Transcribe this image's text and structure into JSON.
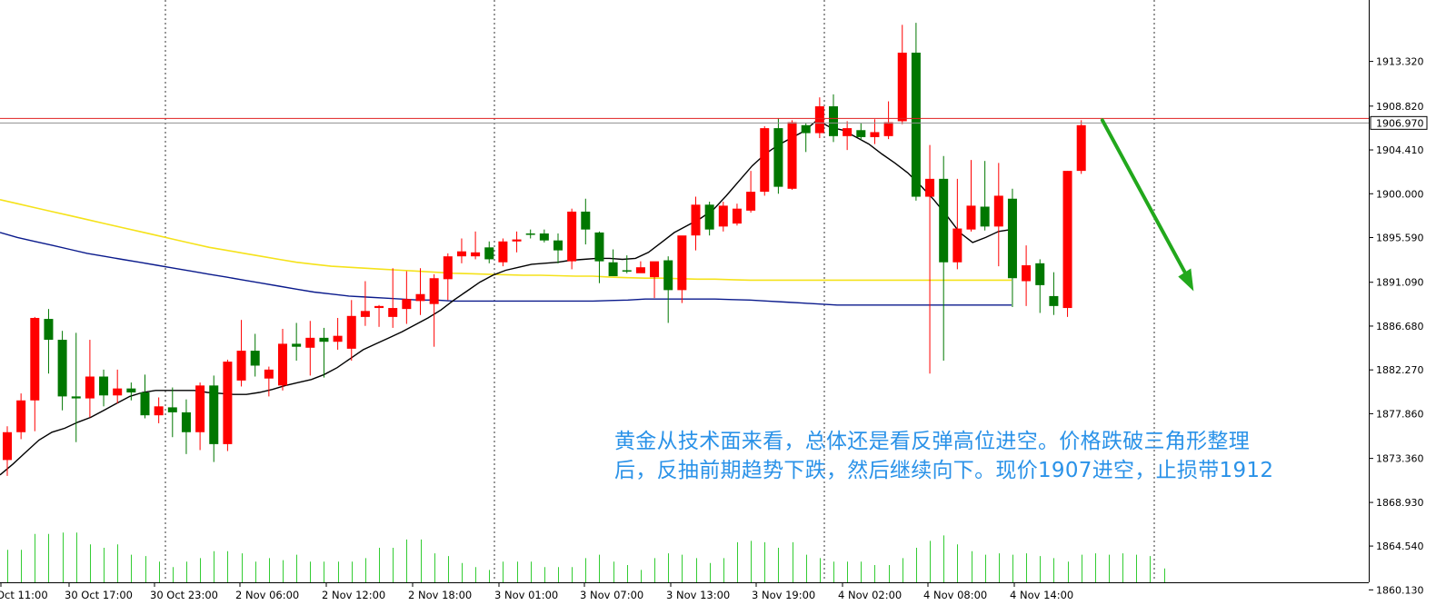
{
  "chart_data": {
    "type": "candlestick",
    "symbol_hint": "XAUUSD",
    "ylim": [
      1857.6,
      1919.5
    ],
    "y_ticks": [
      "1913.320",
      "1908.820",
      "1904.410",
      "1900.000",
      "1895.590",
      "1891.090",
      "1886.680",
      "1882.270",
      "1877.860",
      "1873.360",
      "1868.930",
      "1864.540",
      "1860.130"
    ],
    "x_ticks": [
      "Oct 11:00",
      "30 Oct 17:00",
      "30 Oct 23:00",
      "2 Nov 06:00",
      "2 Nov 12:00",
      "2 Nov 18:00",
      "3 Nov 01:00",
      "3 Nov 07:00",
      "3 Nov 13:00",
      "3 Nov 19:00",
      "4 Nov 02:00",
      "4 Nov 08:00",
      "4 Nov 14:00"
    ],
    "current_price": "1906.970",
    "reference_price": 1907.4,
    "candles": [
      {
        "o": 1873.2,
        "h": 1876.6,
        "l": 1871.6,
        "c": 1876.0
      },
      {
        "o": 1876.0,
        "h": 1879.9,
        "l": 1875.3,
        "c": 1879.2
      },
      {
        "o": 1879.2,
        "h": 1887.6,
        "l": 1876.1,
        "c": 1887.5
      },
      {
        "o": 1887.4,
        "h": 1888.4,
        "l": 1881.9,
        "c": 1885.3
      },
      {
        "o": 1885.3,
        "h": 1886.2,
        "l": 1878.2,
        "c": 1879.6
      },
      {
        "o": 1879.6,
        "h": 1886.0,
        "l": 1875.0,
        "c": 1879.4
      },
      {
        "o": 1879.4,
        "h": 1885.3,
        "l": 1877.5,
        "c": 1881.6
      },
      {
        "o": 1881.6,
        "h": 1882.3,
        "l": 1878.6,
        "c": 1879.7
      },
      {
        "o": 1879.7,
        "h": 1882.3,
        "l": 1878.9,
        "c": 1880.4
      },
      {
        "o": 1880.4,
        "h": 1881.0,
        "l": 1879.2,
        "c": 1880.0
      },
      {
        "o": 1880.0,
        "h": 1881.8,
        "l": 1877.4,
        "c": 1877.7
      },
      {
        "o": 1877.7,
        "h": 1879.5,
        "l": 1876.9,
        "c": 1878.6
      },
      {
        "o": 1878.5,
        "h": 1880.5,
        "l": 1875.5,
        "c": 1878.0
      },
      {
        "o": 1878.0,
        "h": 1879.3,
        "l": 1873.8,
        "c": 1876.0
      },
      {
        "o": 1876.0,
        "h": 1881.0,
        "l": 1874.2,
        "c": 1880.7
      },
      {
        "o": 1880.7,
        "h": 1881.7,
        "l": 1873.0,
        "c": 1874.8
      },
      {
        "o": 1874.8,
        "h": 1883.3,
        "l": 1874.1,
        "c": 1883.1
      },
      {
        "o": 1881.2,
        "h": 1887.3,
        "l": 1880.6,
        "c": 1884.2
      },
      {
        "o": 1884.2,
        "h": 1885.9,
        "l": 1881.6,
        "c": 1882.7
      },
      {
        "o": 1881.4,
        "h": 1882.6,
        "l": 1879.6,
        "c": 1882.3
      },
      {
        "o": 1880.7,
        "h": 1886.4,
        "l": 1880.2,
        "c": 1884.9
      },
      {
        "o": 1884.9,
        "h": 1887.0,
        "l": 1883.2,
        "c": 1884.6
      },
      {
        "o": 1884.5,
        "h": 1887.2,
        "l": 1881.7,
        "c": 1885.5
      },
      {
        "o": 1885.5,
        "h": 1886.5,
        "l": 1881.5,
        "c": 1885.1
      },
      {
        "o": 1885.1,
        "h": 1887.5,
        "l": 1884.3,
        "c": 1885.7
      },
      {
        "o": 1884.4,
        "h": 1889.3,
        "l": 1883.2,
        "c": 1887.7
      },
      {
        "o": 1887.6,
        "h": 1891.2,
        "l": 1886.7,
        "c": 1888.2
      },
      {
        "o": 1888.5,
        "h": 1888.8,
        "l": 1886.6,
        "c": 1888.7
      },
      {
        "o": 1887.6,
        "h": 1892.5,
        "l": 1886.5,
        "c": 1888.5
      },
      {
        "o": 1888.4,
        "h": 1892.2,
        "l": 1886.9,
        "c": 1889.4
      },
      {
        "o": 1889.2,
        "h": 1892.5,
        "l": 1887.8,
        "c": 1889.9
      },
      {
        "o": 1888.9,
        "h": 1891.9,
        "l": 1884.6,
        "c": 1891.5
      },
      {
        "o": 1891.4,
        "h": 1894.0,
        "l": 1889.3,
        "c": 1893.7
      },
      {
        "o": 1893.7,
        "h": 1895.5,
        "l": 1893.0,
        "c": 1894.2
      },
      {
        "o": 1893.7,
        "h": 1896.2,
        "l": 1893.4,
        "c": 1894.1
      },
      {
        "o": 1894.6,
        "h": 1895.2,
        "l": 1893.0,
        "c": 1893.4
      },
      {
        "o": 1893.1,
        "h": 1895.5,
        "l": 1892.7,
        "c": 1895.2
      },
      {
        "o": 1895.2,
        "h": 1896.2,
        "l": 1894.1,
        "c": 1895.4
      },
      {
        "o": 1896.0,
        "h": 1896.4,
        "l": 1895.5,
        "c": 1895.9
      },
      {
        "o": 1896.0,
        "h": 1896.4,
        "l": 1895.1,
        "c": 1895.3
      },
      {
        "o": 1895.3,
        "h": 1896.0,
        "l": 1893.0,
        "c": 1894.3
      },
      {
        "o": 1893.2,
        "h": 1898.5,
        "l": 1892.4,
        "c": 1898.2
      },
      {
        "o": 1898.2,
        "h": 1899.5,
        "l": 1894.9,
        "c": 1896.4
      },
      {
        "o": 1896.1,
        "h": 1896.2,
        "l": 1891.0,
        "c": 1893.2
      },
      {
        "o": 1893.1,
        "h": 1894.4,
        "l": 1892.0,
        "c": 1891.7
      },
      {
        "o": 1892.3,
        "h": 1893.8,
        "l": 1892.0,
        "c": 1892.2
      },
      {
        "o": 1892.0,
        "h": 1893.2,
        "l": 1892.2,
        "c": 1892.6
      },
      {
        "o": 1891.6,
        "h": 1893.0,
        "l": 1889.5,
        "c": 1893.2
      },
      {
        "o": 1893.3,
        "h": 1893.7,
        "l": 1887.0,
        "c": 1890.3
      },
      {
        "o": 1890.3,
        "h": 1895.5,
        "l": 1889.0,
        "c": 1895.8
      },
      {
        "o": 1895.8,
        "h": 1899.7,
        "l": 1894.3,
        "c": 1898.9
      },
      {
        "o": 1898.9,
        "h": 1899.2,
        "l": 1895.8,
        "c": 1896.4
      },
      {
        "o": 1896.7,
        "h": 1899.2,
        "l": 1896.2,
        "c": 1898.8
      },
      {
        "o": 1897.0,
        "h": 1899.0,
        "l": 1896.8,
        "c": 1898.5
      },
      {
        "o": 1898.3,
        "h": 1902.3,
        "l": 1898.1,
        "c": 1900.2
      },
      {
        "o": 1900.2,
        "h": 1906.8,
        "l": 1899.8,
        "c": 1906.6
      },
      {
        "o": 1906.6,
        "h": 1907.6,
        "l": 1900.0,
        "c": 1900.7
      },
      {
        "o": 1900.5,
        "h": 1907.4,
        "l": 1900.4,
        "c": 1907.2
      },
      {
        "o": 1906.9,
        "h": 1907.1,
        "l": 1904.2,
        "c": 1906.1
      },
      {
        "o": 1906.1,
        "h": 1909.7,
        "l": 1905.6,
        "c": 1908.8
      },
      {
        "o": 1908.8,
        "h": 1910.0,
        "l": 1905.2,
        "c": 1905.8
      },
      {
        "o": 1905.8,
        "h": 1907.3,
        "l": 1904.4,
        "c": 1906.6
      },
      {
        "o": 1906.4,
        "h": 1907.1,
        "l": 1905.4,
        "c": 1905.7
      },
      {
        "o": 1905.7,
        "h": 1907.5,
        "l": 1905.0,
        "c": 1906.2
      },
      {
        "o": 1905.8,
        "h": 1909.3,
        "l": 1905.5,
        "c": 1907.2
      },
      {
        "o": 1907.3,
        "h": 1917.0,
        "l": 1907.0,
        "c": 1914.2
      },
      {
        "o": 1914.2,
        "h": 1917.2,
        "l": 1899.3,
        "c": 1899.7
      },
      {
        "o": 1899.7,
        "h": 1904.9,
        "l": 1881.9,
        "c": 1901.5
      },
      {
        "o": 1901.5,
        "h": 1903.8,
        "l": 1883.2,
        "c": 1893.1
      },
      {
        "o": 1893.1,
        "h": 1901.5,
        "l": 1892.4,
        "c": 1896.5
      },
      {
        "o": 1896.4,
        "h": 1903.4,
        "l": 1896.2,
        "c": 1898.8
      },
      {
        "o": 1898.7,
        "h": 1903.3,
        "l": 1896.3,
        "c": 1896.7
      },
      {
        "o": 1896.7,
        "h": 1903.1,
        "l": 1892.7,
        "c": 1899.8
      },
      {
        "o": 1899.5,
        "h": 1900.5,
        "l": 1888.6,
        "c": 1891.5
      },
      {
        "o": 1891.2,
        "h": 1894.8,
        "l": 1888.7,
        "c": 1892.8
      },
      {
        "o": 1893.0,
        "h": 1893.4,
        "l": 1888.0,
        "c": 1890.8
      },
      {
        "o": 1889.7,
        "h": 1892.1,
        "l": 1887.8,
        "c": 1888.7
      },
      {
        "o": 1888.5,
        "h": 1902.3,
        "l": 1887.6,
        "c": 1902.3
      },
      {
        "o": 1902.3,
        "h": 1907.4,
        "l": 1902.0,
        "c": 1906.9
      }
    ],
    "ma_black": [
      1871.7,
      1872.8,
      1874.0,
      1875.2,
      1876.0,
      1876.4,
      1877.0,
      1877.5,
      1878.2,
      1878.9,
      1879.6,
      1880.0,
      1880.2,
      1880.2,
      1880.2,
      1880.2,
      1880.0,
      1879.9,
      1879.8,
      1879.8,
      1880.0,
      1880.3,
      1880.7,
      1881.0,
      1881.3,
      1881.8,
      1882.5,
      1883.4,
      1884.3,
      1884.9,
      1885.5,
      1886.1,
      1886.8,
      1887.5,
      1888.3,
      1889.3,
      1890.2,
      1891.1,
      1891.8,
      1892.3,
      1892.6,
      1892.9,
      1893.0,
      1893.1,
      1893.3,
      1893.4,
      1893.5,
      1893.5,
      1893.4,
      1893.5,
      1894.1,
      1895.1,
      1896.1,
      1896.8,
      1897.5,
      1898.4,
      1899.8,
      1901.3,
      1902.8,
      1904.0,
      1904.9,
      1905.6,
      1906.3,
      1907.4,
      1906.7,
      1906.4,
      1905.7,
      1905.0,
      1904.0,
      1903.1,
      1902.1,
      1900.8,
      1899.4,
      1897.8,
      1896.1,
      1895.1,
      1895.6,
      1896.2,
      1896.4
    ],
    "ma_yellow": [
      1899.4,
      1899.0,
      1898.6,
      1898.2,
      1897.8,
      1897.4,
      1897.0,
      1896.6,
      1896.2,
      1895.8,
      1895.4,
      1895.0,
      1894.6,
      1894.3,
      1894.0,
      1893.7,
      1893.4,
      1893.1,
      1892.9,
      1892.7,
      1892.6,
      1892.5,
      1892.4,
      1892.3,
      1892.2,
      1892.1,
      1892.0,
      1891.95,
      1891.9,
      1891.85,
      1891.8,
      1891.8,
      1891.75,
      1891.7,
      1891.7,
      1891.6,
      1891.55,
      1891.5,
      1891.5,
      1891.45,
      1891.4,
      1891.4,
      1891.35,
      1891.3,
      1891.3,
      1891.3,
      1891.3,
      1891.3,
      1891.3,
      1891.3,
      1891.3,
      1891.3,
      1891.3,
      1891.3,
      1891.3,
      1891.3,
      1891.3,
      1891.3,
      1891.3
    ],
    "ma_navy": [
      1896.1,
      1895.6,
      1895.2,
      1894.8,
      1894.4,
      1894.0,
      1893.7,
      1893.4,
      1893.1,
      1892.8,
      1892.5,
      1892.2,
      1891.9,
      1891.6,
      1891.3,
      1891.0,
      1890.7,
      1890.4,
      1890.1,
      1889.9,
      1889.7,
      1889.6,
      1889.5,
      1889.4,
      1889.3,
      1889.3,
      1889.2,
      1889.2,
      1889.2,
      1889.2,
      1889.2,
      1889.2,
      1889.2,
      1889.2,
      1889.2,
      1889.25,
      1889.3,
      1889.4,
      1889.4,
      1889.4,
      1889.4,
      1889.4,
      1889.35,
      1889.3,
      1889.2,
      1889.1,
      1889.0,
      1888.9,
      1888.8,
      1888.8,
      1888.8,
      1888.8,
      1888.8,
      1888.8,
      1888.8,
      1888.8,
      1888.8,
      1888.8,
      1888.8
    ],
    "volumes": [
      0.47,
      0.47,
      0.7,
      0.7,
      0.72,
      0.72,
      0.55,
      0.5,
      0.55,
      0.4,
      0.38,
      0.3,
      0.22,
      0.3,
      0.35,
      0.45,
      0.45,
      0.42,
      0.3,
      0.35,
      0.32,
      0.4,
      0.3,
      0.3,
      0.3,
      0.3,
      0.35,
      0.5,
      0.5,
      0.62,
      0.62,
      0.42,
      0.38,
      0.28,
      0.22,
      0.18,
      0.3,
      0.3,
      0.3,
      0.22,
      0.22,
      0.22,
      0.35,
      0.4,
      0.3,
      0.25,
      0.18,
      0.35,
      0.42,
      0.4,
      0.35,
      0.28,
      0.35,
      0.58,
      0.6,
      0.58,
      0.5,
      0.58,
      0.4,
      0.35,
      0.3,
      0.3,
      0.3,
      0.25,
      0.25,
      0.35,
      0.5,
      0.6,
      0.68,
      0.55,
      0.45,
      0.4,
      0.42,
      0.4,
      0.42,
      0.38,
      0.35,
      0.3,
      0.4,
      0.42,
      0.4,
      0.42,
      0.4,
      0.38,
      0.2
    ],
    "arrow": {
      "from": {
        "bar": 79,
        "price": 1907.4
      },
      "to": {
        "bar": 85.5,
        "price": 1890.2
      },
      "color": "#22a81c"
    },
    "up_color": "#ff0000",
    "down_color": "#007700"
  },
  "annotation": {
    "line1": "黄金从技术面来看，总体还是看反弹高位进空。价格跌破三角形整理",
    "line2": "后，反抽前期趋势下跌，然后继续向下。现价1907进空，止损带1912"
  }
}
